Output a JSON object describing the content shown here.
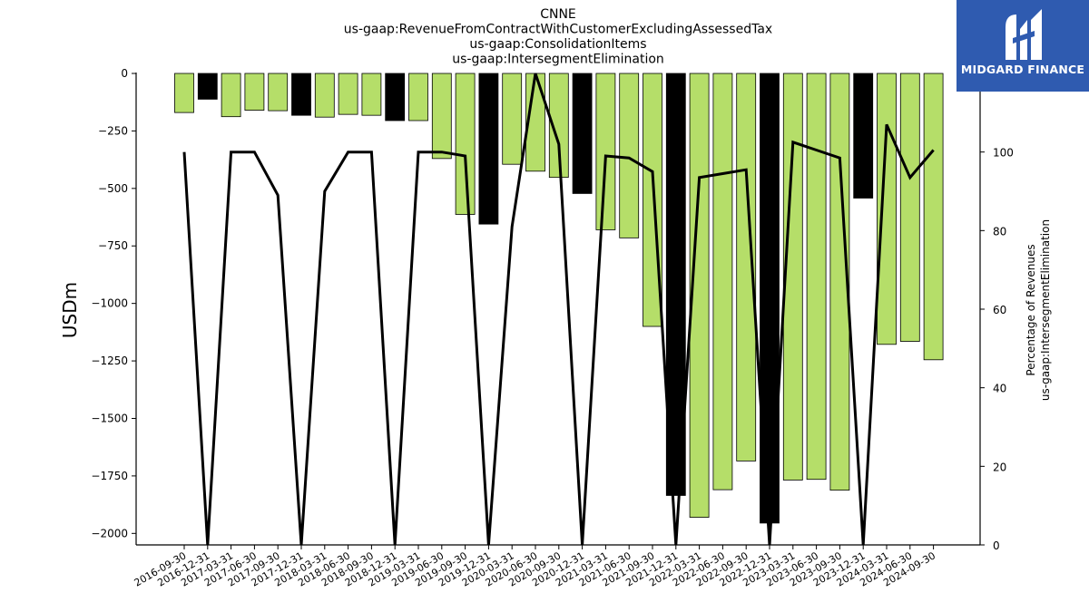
{
  "chart_data": {
    "type": "bar",
    "title_lines": [
      "CNNE",
      "us-gaap:RevenueFromContractWithCustomerExcludingAssessedTax",
      "us-gaap:ConsolidationItems",
      "us-gaap:IntersegmentElimination"
    ],
    "ylabel": "USDm",
    "y2label_lines": [
      "Percentage of Revenues",
      "us-gaap:IntersegmentElimination"
    ],
    "ylim": [
      -2050,
      0
    ],
    "y2lim": [
      0,
      120
    ],
    "yticks": [
      0,
      -250,
      -500,
      -750,
      -1000,
      -1250,
      -1500,
      -1750,
      -2000
    ],
    "ytick_labels": [
      "0",
      "−250",
      "−500",
      "−750",
      "−1000",
      "−1250",
      "−1500",
      "−1750",
      "−2000"
    ],
    "y2ticks": [
      0,
      20,
      40,
      60,
      80,
      100
    ],
    "y2tick_labels": [
      "0",
      "20",
      "40",
      "60",
      "80",
      "100"
    ],
    "categories": [
      "2016-09-30",
      "2016-12-31",
      "2017-03-31",
      "2017-06-30",
      "2017-09-30",
      "2017-12-31",
      "2018-03-31",
      "2018-06-30",
      "2018-09-30",
      "2018-12-31",
      "2019-03-31",
      "2019-06-30",
      "2019-09-30",
      "2019-12-31",
      "2020-03-31",
      "2020-06-30",
      "2020-09-30",
      "2020-12-31",
      "2021-03-31",
      "2021-06-30",
      "2021-09-30",
      "2021-12-31",
      "2022-03-31",
      "2022-06-30",
      "2022-09-30",
      "2022-12-31",
      "2023-03-31",
      "2023-06-30",
      "2023-09-30",
      "2023-12-31",
      "2024-03-31",
      "2024-06-30",
      "2024-09-30"
    ],
    "series": [
      {
        "kind": "bar",
        "values": [
          -170,
          -112,
          -188,
          -160,
          -162,
          -182,
          -190,
          -178,
          -182,
          -205,
          -205,
          -370,
          -613,
          -655,
          -395,
          -425,
          -452,
          -522,
          -680,
          -715,
          -1100,
          -1835,
          -1930,
          -1810,
          -1685,
          -1955,
          -1768,
          -1765,
          -1812,
          -542,
          -1178,
          -1165,
          -1245
        ],
        "colors": [
          "#b5de69",
          "#000000",
          "#b5de69",
          "#b5de69",
          "#b5de69",
          "#000000",
          "#b5de69",
          "#b5de69",
          "#b5de69",
          "#000000",
          "#b5de69",
          "#b5de69",
          "#b5de69",
          "#000000",
          "#b5de69",
          "#b5de69",
          "#b5de69",
          "#000000",
          "#b5de69",
          "#b5de69",
          "#b5de69",
          "#000000",
          "#b5de69",
          "#b5de69",
          "#b5de69",
          "#000000",
          "#b5de69",
          "#b5de69",
          "#b5de69",
          "#000000",
          "#b5de69",
          "#b5de69",
          "#b5de69"
        ]
      },
      {
        "kind": "line",
        "axis": "right",
        "values": [
          100,
          0,
          100,
          100,
          89,
          0,
          90,
          100,
          100,
          0,
          100,
          100,
          99,
          0,
          81,
          120,
          102,
          0,
          99,
          98.5,
          95,
          0,
          93.5,
          94.5,
          95.5,
          0,
          102.5,
          100.5,
          98.5,
          0,
          107,
          93.5,
          100.5
        ]
      }
    ],
    "grid": false,
    "colors": {
      "bar_green": "#b5de69",
      "bar_black": "#000000",
      "line": "#000000"
    }
  },
  "logo": {
    "text": "MIDGARD FINANCE",
    "bg_color": "#2f5bb0"
  }
}
